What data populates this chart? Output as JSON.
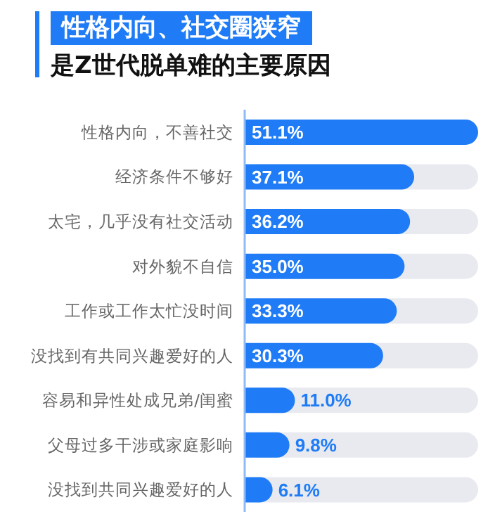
{
  "chart_data": {
    "type": "bar",
    "orientation": "horizontal",
    "title": "性格内向、社交圈狭窄",
    "subtitle": "是Z世代脱单难的主要原因",
    "categories": [
      "性格内向，不善社交",
      "经济条件不够好",
      "太宅，几乎没有社交活动",
      "对外貌不自信",
      "工作或工作太忙没时间",
      "没找到有共同兴趣爱好的人",
      "容易和异性处成兄弟/闺蜜",
      "父母过多干涉或家庭影响",
      "没找到共同兴趣爱好的人"
    ],
    "values": [
      51.1,
      37.1,
      36.2,
      35.0,
      33.3,
      30.3,
      11.0,
      9.8,
      6.1
    ],
    "value_labels": [
      "51.1%",
      "37.1%",
      "36.2%",
      "35.0%",
      "33.3%",
      "30.3%",
      "11.0%",
      "9.8%",
      "6.1%"
    ],
    "color": "#1f7cf6",
    "tick_labels": "y"
  }
}
